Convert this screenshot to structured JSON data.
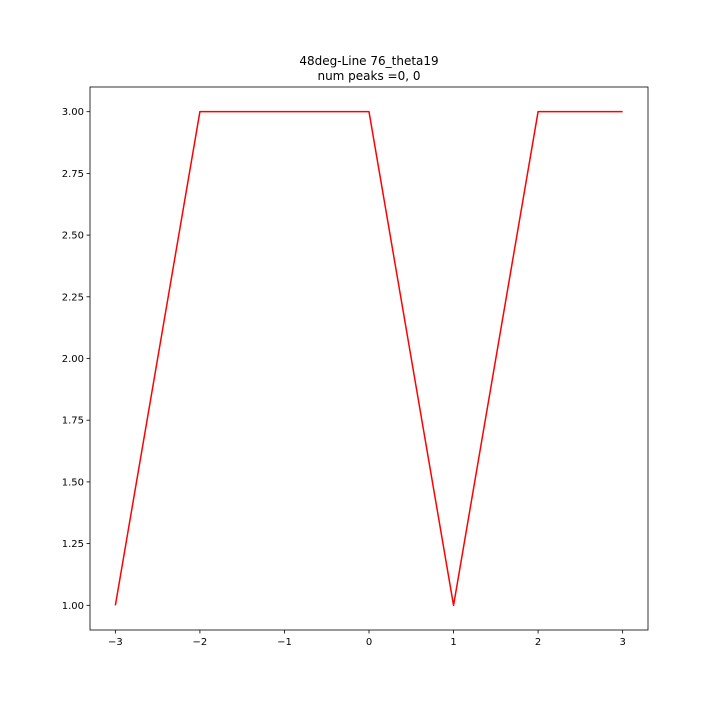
{
  "chart_data": {
    "type": "line",
    "title": "48deg-Line 76_theta19",
    "subtitle": "num peaks =0, 0",
    "xlabel": "",
    "ylabel": "",
    "xlim": [
      -3.3,
      3.3
    ],
    "ylim": [
      0.9,
      3.1
    ],
    "grid": false,
    "x_ticks": [
      -3,
      -2,
      -1,
      0,
      1,
      2,
      3
    ],
    "x_tick_labels": [
      "−3",
      "−2",
      "−1",
      "0",
      "1",
      "2",
      "3"
    ],
    "y_ticks": [
      1.0,
      1.25,
      1.5,
      1.75,
      2.0,
      2.25,
      2.5,
      2.75,
      3.0
    ],
    "y_tick_labels": [
      "1.00",
      "1.25",
      "1.50",
      "1.75",
      "2.00",
      "2.25",
      "2.50",
      "2.75",
      "3.00"
    ],
    "series": [
      {
        "color": "#ff0000",
        "x": [
          -3,
          -2,
          -1,
          0,
          1,
          2,
          3
        ],
        "y": [
          1,
          3,
          3,
          3,
          1,
          3,
          3
        ]
      }
    ]
  }
}
